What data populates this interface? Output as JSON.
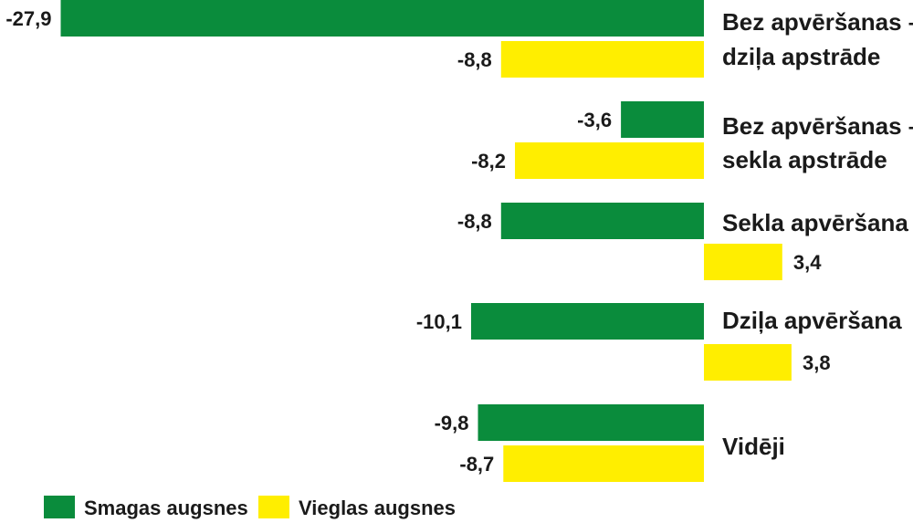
{
  "chart_data": {
    "type": "bar",
    "orientation": "horizontal",
    "categories": [
      [
        "Bez apvēršanas –",
        "dziļa apstrāde"
      ],
      [
        "Bez apvēršanas –",
        "sekla apstrāde"
      ],
      [
        "Sekla apvēršana"
      ],
      [
        "Dziļa apvēršana"
      ],
      [
        "Vidēji"
      ]
    ],
    "series": [
      {
        "name": "Smagas augsnes",
        "values": [
          -27.9,
          -3.6,
          -8.8,
          -10.1,
          -9.8
        ],
        "labels": [
          "-27,9",
          "-3,6",
          "-8,8",
          "-10,1",
          "-9,8"
        ]
      },
      {
        "name": "Vieglas augsnes",
        "values": [
          -8.8,
          -8.2,
          3.4,
          3.8,
          -8.7
        ],
        "labels": [
          "-8,8",
          "-8,2",
          "3,4",
          "3,8",
          "-8,7"
        ]
      }
    ],
    "colors": {
      "Smagas augsnes": "#0a8c3c",
      "Vieglas augsnes": "#ffee00"
    },
    "legend": "bottom-left",
    "grid": false
  }
}
